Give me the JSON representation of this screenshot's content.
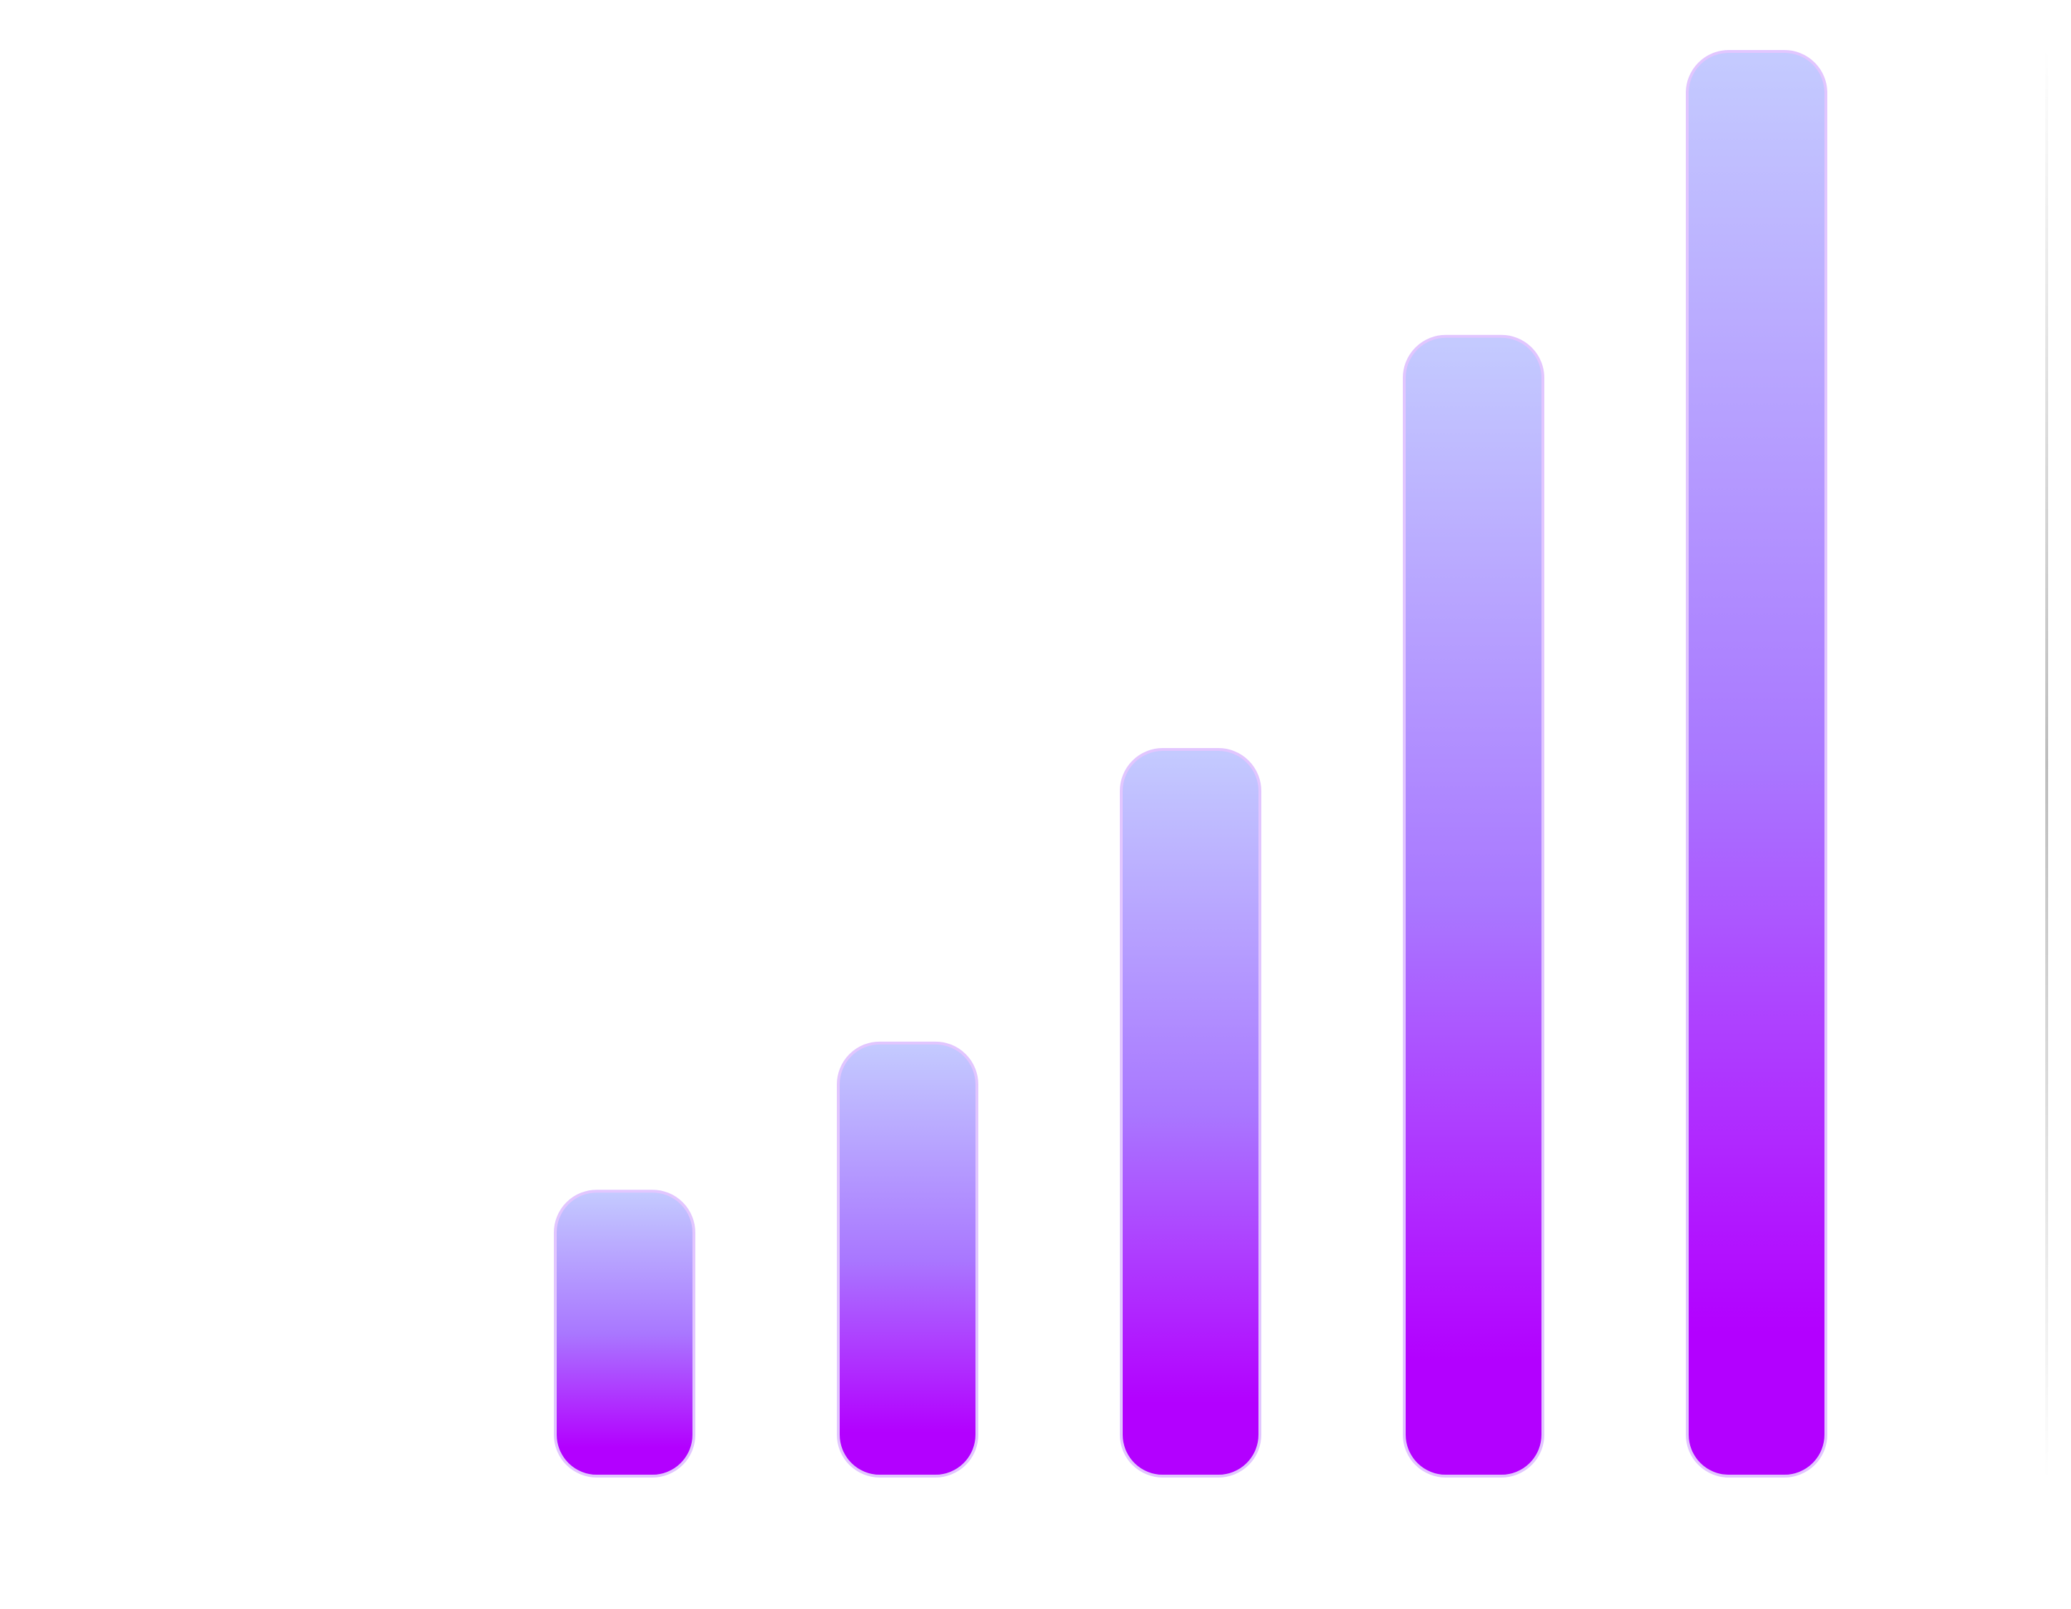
{
  "chart_data": {
    "type": "bar",
    "categories": [
      "",
      "",
      "",
      "",
      ""
    ],
    "values": [
      10,
      15.2,
      25.5,
      40,
      50
    ],
    "title": "",
    "xlabel": "",
    "ylabel": "",
    "ylim": [
      0,
      50
    ],
    "grid": false,
    "legend": "none",
    "colors": {
      "bar_top": "#c4cbff",
      "bar_mid": "#a977ff",
      "bar_bottom": "#b300ff",
      "bar_outline": "#e2c6ff",
      "divider": "#bdbdbd"
    }
  }
}
